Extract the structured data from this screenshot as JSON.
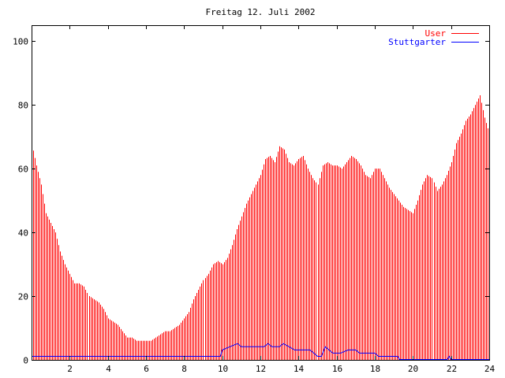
{
  "chart_data": {
    "type": "bar",
    "title": "Freitag 12. Juli 2002",
    "xlabel": "",
    "ylabel": "",
    "xlim": [
      0,
      24
    ],
    "ylim": [
      0,
      105
    ],
    "x_ticks": [
      "2",
      "4",
      "6",
      "8",
      "10",
      "12",
      "14",
      "16",
      "18",
      "20",
      "22",
      "24"
    ],
    "y_ticks": [
      "0",
      "20",
      "40",
      "60",
      "80",
      "100"
    ],
    "legend_position": "top-right",
    "grid": false,
    "series": [
      {
        "name": "User",
        "style": "impulses",
        "color": "#ff0000",
        "points": [
          [
            0.0,
            68
          ],
          [
            0.25,
            61
          ],
          [
            0.5,
            55
          ],
          [
            0.75,
            46
          ],
          [
            1.0,
            43
          ],
          [
            1.25,
            40
          ],
          [
            1.5,
            34
          ],
          [
            1.75,
            30
          ],
          [
            2.0,
            27
          ],
          [
            2.25,
            24
          ],
          [
            2.5,
            24
          ],
          [
            2.75,
            23
          ],
          [
            3.0,
            20
          ],
          [
            3.25,
            19
          ],
          [
            3.5,
            18
          ],
          [
            3.75,
            16
          ],
          [
            4.0,
            13
          ],
          [
            4.25,
            12
          ],
          [
            4.5,
            11
          ],
          [
            4.75,
            9
          ],
          [
            5.0,
            7
          ],
          [
            5.25,
            7
          ],
          [
            5.5,
            6
          ],
          [
            5.75,
            6
          ],
          [
            6.0,
            6
          ],
          [
            6.25,
            6
          ],
          [
            6.5,
            7
          ],
          [
            6.75,
            8
          ],
          [
            7.0,
            9
          ],
          [
            7.25,
            9
          ],
          [
            7.5,
            10
          ],
          [
            7.75,
            11
          ],
          [
            8.0,
            13
          ],
          [
            8.25,
            15
          ],
          [
            8.5,
            19
          ],
          [
            8.75,
            22
          ],
          [
            9.0,
            25
          ],
          [
            9.25,
            27
          ],
          [
            9.5,
            30
          ],
          [
            9.75,
            31
          ],
          [
            10.0,
            30
          ],
          [
            10.25,
            32
          ],
          [
            10.5,
            36
          ],
          [
            10.75,
            41
          ],
          [
            11.0,
            45
          ],
          [
            11.25,
            49
          ],
          [
            11.5,
            52
          ],
          [
            11.75,
            55
          ],
          [
            12.0,
            58
          ],
          [
            12.25,
            63
          ],
          [
            12.5,
            64
          ],
          [
            12.75,
            62
          ],
          [
            13.0,
            67
          ],
          [
            13.25,
            66
          ],
          [
            13.5,
            62
          ],
          [
            13.75,
            61
          ],
          [
            14.0,
            63
          ],
          [
            14.25,
            64
          ],
          [
            14.5,
            60
          ],
          [
            14.75,
            57
          ],
          [
            15.0,
            55
          ],
          [
            15.25,
            61
          ],
          [
            15.5,
            62
          ],
          [
            15.75,
            61
          ],
          [
            16.0,
            61
          ],
          [
            16.25,
            60
          ],
          [
            16.5,
            62
          ],
          [
            16.75,
            64
          ],
          [
            17.0,
            63
          ],
          [
            17.25,
            61
          ],
          [
            17.5,
            58
          ],
          [
            17.75,
            57
          ],
          [
            18.0,
            60
          ],
          [
            18.25,
            60
          ],
          [
            18.5,
            57
          ],
          [
            18.75,
            54
          ],
          [
            19.0,
            52
          ],
          [
            19.25,
            50
          ],
          [
            19.5,
            48
          ],
          [
            19.75,
            47
          ],
          [
            20.0,
            46
          ],
          [
            20.25,
            50
          ],
          [
            20.5,
            55
          ],
          [
            20.75,
            58
          ],
          [
            21.0,
            57
          ],
          [
            21.25,
            53
          ],
          [
            21.5,
            55
          ],
          [
            21.75,
            58
          ],
          [
            22.0,
            62
          ],
          [
            22.25,
            68
          ],
          [
            22.5,
            71
          ],
          [
            22.75,
            75
          ],
          [
            23.0,
            77
          ],
          [
            23.25,
            80
          ],
          [
            23.5,
            83
          ],
          [
            23.75,
            76
          ],
          [
            24.0,
            71
          ]
        ]
      },
      {
        "name": "Stuttgarter",
        "style": "line",
        "color": "#0000ff",
        "points": [
          [
            0.0,
            1
          ],
          [
            9.9,
            1
          ],
          [
            10.0,
            3
          ],
          [
            10.4,
            4
          ],
          [
            10.8,
            5
          ],
          [
            11.0,
            4
          ],
          [
            12.2,
            4
          ],
          [
            12.4,
            5
          ],
          [
            12.6,
            4
          ],
          [
            13.0,
            4
          ],
          [
            13.2,
            5
          ],
          [
            13.5,
            4
          ],
          [
            13.8,
            3
          ],
          [
            14.0,
            3
          ],
          [
            14.6,
            3
          ],
          [
            14.8,
            2
          ],
          [
            15.0,
            1
          ],
          [
            15.2,
            1
          ],
          [
            15.4,
            4
          ],
          [
            15.6,
            3
          ],
          [
            15.8,
            2
          ],
          [
            16.2,
            2
          ],
          [
            16.6,
            3
          ],
          [
            17.0,
            3
          ],
          [
            17.2,
            2
          ],
          [
            18.0,
            2
          ],
          [
            18.2,
            1
          ],
          [
            19.2,
            1
          ],
          [
            19.3,
            0
          ],
          [
            21.8,
            0
          ],
          [
            21.9,
            1
          ],
          [
            22.0,
            0
          ],
          [
            24.0,
            0
          ]
        ]
      }
    ]
  }
}
